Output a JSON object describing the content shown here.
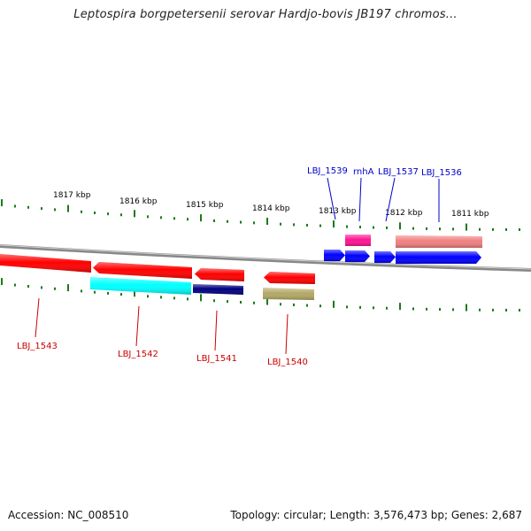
{
  "title": "Leptospira borgpetersenii serovar Hardjo-bovis JB197 chromos...",
  "footer": {
    "accession": "Accession: NC_008510",
    "topology": "Topology: circular; Length: 3,576,473 bp; Genes: 2,687"
  },
  "colors": {
    "tick": "#1a7a1a",
    "backbone": "#888888",
    "label_forward": "#0000cc",
    "label_reverse": "#cc0000"
  },
  "ruler_labels": [
    "1817 kbp",
    "1816 kbp",
    "1815 kbp",
    "1814 kbp",
    "1813 kbp",
    "1812 kbp",
    "1811 kbp"
  ],
  "genes": [
    {
      "id": "g1543",
      "label": "LBJ_1543",
      "strand": "-",
      "color": "#ff0000"
    },
    {
      "id": "g1542a",
      "label": "",
      "strand": "-",
      "color": "#ff0000"
    },
    {
      "id": "g1542",
      "label": "LBJ_1542",
      "strand": "-",
      "color": "#00ffff"
    },
    {
      "id": "g1541a",
      "label": "",
      "strand": "-",
      "color": "#ff0000"
    },
    {
      "id": "g1541",
      "label": "LBJ_1541",
      "strand": "-",
      "color": "#000080"
    },
    {
      "id": "g1540a",
      "label": "",
      "strand": "-",
      "color": "#ff0000"
    },
    {
      "id": "g1540",
      "label": "LBJ_1540",
      "strand": "-",
      "color": "#b3a866"
    },
    {
      "id": "g1539",
      "label": "LBJ_1539",
      "strand": "+",
      "color": "#0000ff"
    },
    {
      "id": "grnhA",
      "label": "rnhA",
      "strand": "+",
      "color": "#0000ff"
    },
    {
      "id": "grnhA_b",
      "label": "",
      "strand": "+",
      "color": "#ff1493"
    },
    {
      "id": "g1537",
      "label": "LBJ_1537",
      "strand": "+",
      "color": "#0000ff"
    },
    {
      "id": "g1536",
      "label": "LBJ_1536",
      "strand": "+",
      "color": "#0000ff"
    },
    {
      "id": "g1536b",
      "label": "",
      "strand": "+",
      "color": "#f08080"
    }
  ]
}
